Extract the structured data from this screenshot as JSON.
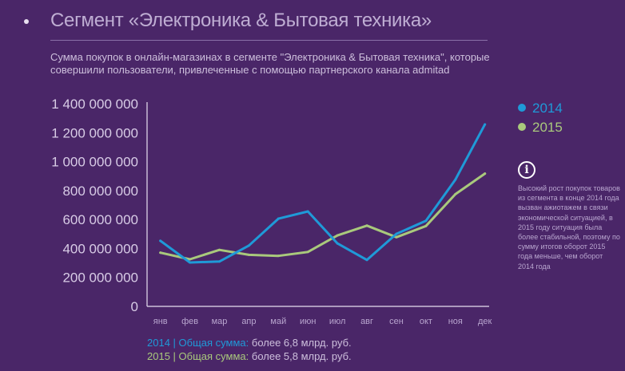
{
  "header": {
    "title": "Сегмент «Электроника & Бытовая техника»",
    "subtitle": "Сумма покупок в онлайн-магазинах в сегменте \"Электроника & Бытовая техника\", которые совершили пользователи, привлеченные с помощью партнерского канала admitad"
  },
  "colors": {
    "2014": "#1f9ad8",
    "2015": "#a9c97c",
    "background": "#4a2668"
  },
  "info": {
    "icon": "info-icon",
    "text": "Высокий рост покупок товаров из сегмента в конце 2014 года вызван ажиотажем в связи экономической ситуацией, в 2015 году ситуация была более стабильной, поэтому по сумму итогов оборот 2015 года меньше, чем оборот 2014 года"
  },
  "totals": [
    {
      "year": "2014",
      "label": "Общая сумма:",
      "value": "более 6,8 млрд. руб."
    },
    {
      "year": "2015",
      "label": "Общая сумма:",
      "value": "более 5,8 млрд. руб."
    }
  ],
  "chart_data": {
    "type": "line",
    "categories": [
      "янв",
      "фев",
      "мар",
      "апр",
      "май",
      "июн",
      "июл",
      "авг",
      "сен",
      "окт",
      "ноя",
      "дек"
    ],
    "series": [
      {
        "name": "2014",
        "values": [
          453000000,
          303000000,
          310000000,
          420000000,
          606000000,
          656000000,
          435000000,
          321000000,
          501000000,
          591000000,
          876000000,
          1257000000
        ]
      },
      {
        "name": "2015",
        "values": [
          371000000,
          325000000,
          390000000,
          356000000,
          349000000,
          376000000,
          490000000,
          558000000,
          478000000,
          555000000,
          775000000,
          917000000
        ]
      }
    ],
    "yticks": [
      "0",
      "200 000 000",
      "400 000 000",
      "600 000 000",
      "800 000 000",
      "1 000 000 000",
      "1 200 000 000",
      "1 400 000 000"
    ],
    "ylim": [
      0,
      1400000000
    ],
    "legend": "right",
    "grid": false
  }
}
